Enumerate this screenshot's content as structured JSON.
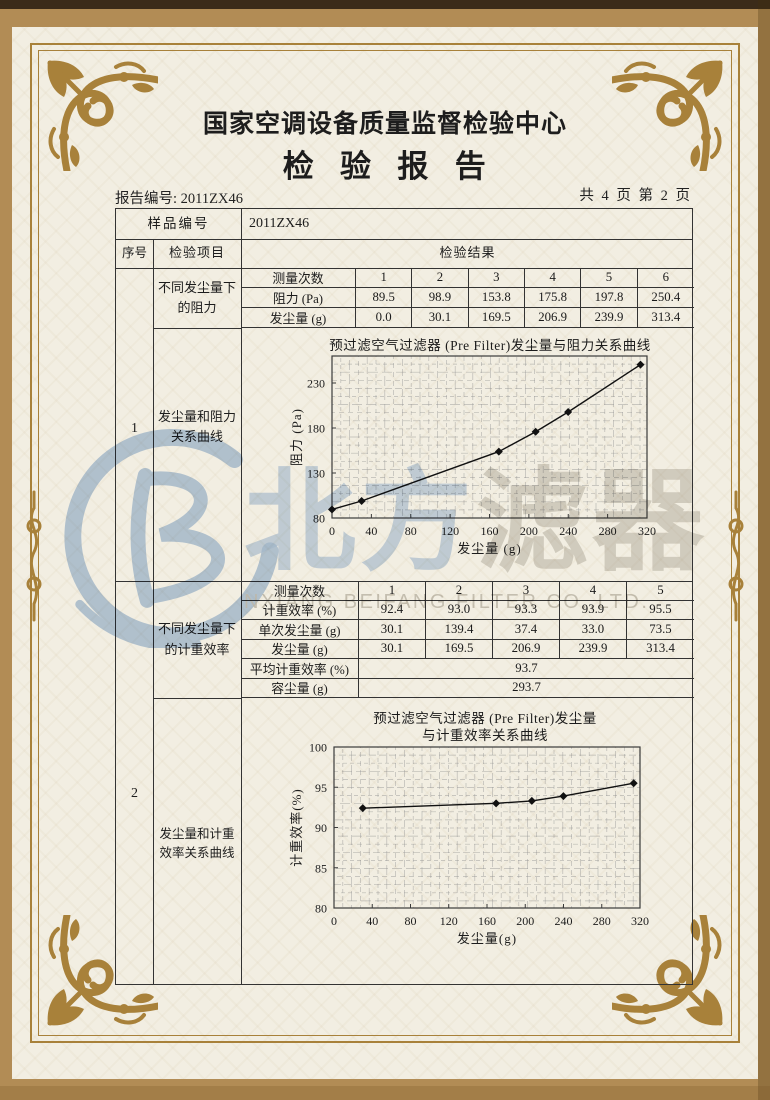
{
  "report": {
    "center_name": "国家空调设备质量监督检验中心",
    "title": "检验报告",
    "report_no_label": "报告编号:",
    "report_no": "2011ZX46",
    "page_info": "共 4 页 第 2 页"
  },
  "table": {
    "sample_label": "样品编号",
    "sample_value": "2011ZX46",
    "header": {
      "seq": "序号",
      "item": "检验项目",
      "result": "检验结果"
    },
    "section1": {
      "seq": "1",
      "item_top": "不同发尘量下的阻力",
      "item_chart": "发尘量和阻力关系曲线",
      "sub": {
        "row_labels": [
          "测量次数",
          "阻力 (Pa)",
          "发尘量 (g)"
        ],
        "counts": [
          "1",
          "2",
          "3",
          "4",
          "5",
          "6"
        ],
        "resistance": [
          "89.5",
          "98.9",
          "153.8",
          "175.8",
          "197.8",
          "250.4"
        ],
        "dust": [
          "0.0",
          "30.1",
          "169.5",
          "206.9",
          "239.9",
          "313.4"
        ]
      }
    },
    "section2": {
      "seq": "2",
      "item_top": "不同发尘量下的计重效率",
      "item_chart": "发尘量和计重效率关系曲线",
      "sub": {
        "row_labels": [
          "测量次数",
          "计重效率 (%)",
          "单次发尘量 (g)",
          "发尘量 (g)",
          "平均计重效率 (%)",
          "容尘量 (g)"
        ],
        "counts": [
          "1",
          "2",
          "3",
          "4",
          "5"
        ],
        "efficiency": [
          "92.4",
          "93.0",
          "93.3",
          "93.9",
          "95.5"
        ],
        "single_dust": [
          "30.1",
          "139.4",
          "37.4",
          "33.0",
          "73.5"
        ],
        "dust": [
          "30.1",
          "169.5",
          "206.9",
          "239.9",
          "313.4"
        ],
        "avg_efficiency": "93.7",
        "dust_capacity": "293.7"
      }
    }
  },
  "watermark": {
    "cn_blue": "北方",
    "cn_gray": "滤器",
    "en": "NXIANG BEIFANG FILTER CO.,LTD.",
    "blue_color": "#a9c2e2",
    "gray_color": "#c7c4bd"
  },
  "colors": {
    "frame_gold": "#a8813a",
    "page_cream": "#f2eee2",
    "outer_tan": "#b28c55",
    "ink": "#222222"
  },
  "chart_data": [
    {
      "type": "line",
      "title": "预过滤空气过滤器 (Pre Filter)发尘量与阻力关系曲线",
      "xlabel": "发尘量 (g)",
      "ylabel": "阻力 (Pa)",
      "xlim": [
        0,
        320
      ],
      "ylim": [
        80,
        260
      ],
      "xticks": [
        0,
        40,
        80,
        120,
        160,
        200,
        240,
        280,
        320
      ],
      "yticks": [
        80,
        130,
        180,
        230
      ],
      "grid": "fine",
      "legend": "none",
      "x": [
        0,
        30.1,
        169.5,
        206.9,
        239.9,
        313.4
      ],
      "y": [
        89.5,
        98.9,
        153.8,
        175.8,
        197.8,
        250.4
      ]
    },
    {
      "type": "line",
      "title": "预过滤空气过滤器 (Pre Filter)发尘量",
      "title2": "与计重效率关系曲线",
      "xlabel": "发尘量(g)",
      "ylabel": "计重效率(%)",
      "xlim": [
        0,
        320
      ],
      "ylim": [
        80,
        100
      ],
      "xticks": [
        0,
        40,
        80,
        120,
        160,
        200,
        240,
        280,
        320
      ],
      "yticks": [
        80,
        85,
        90,
        95,
        100
      ],
      "grid": "fine",
      "legend": "none",
      "x": [
        30.1,
        169.5,
        206.9,
        239.9,
        313.4
      ],
      "y": [
        92.4,
        93.0,
        93.3,
        93.9,
        95.5
      ]
    }
  ]
}
